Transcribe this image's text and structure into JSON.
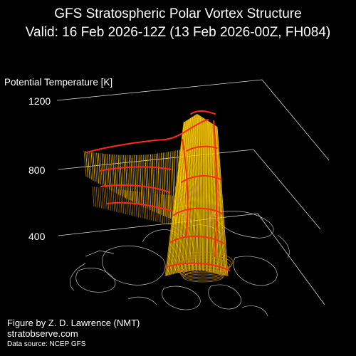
{
  "chart_data": {
    "type": "3d-surface",
    "title_line1": "GFS Stratospheric Polar Vortex Structure",
    "title_line2": "Valid: 16 Feb 2026-12Z  (13 Feb 2026-00Z, FH084)",
    "zlabel": "Potential Temperature [K]",
    "z_ticks": [
      "1200",
      "800",
      "400"
    ],
    "z_range": [
      350,
      1200
    ],
    "colors": {
      "background": "#000000",
      "contour": "#ff2a1a",
      "surface_light": "#ffd400",
      "surface_dark": "#c98a10",
      "map": "#bbbbbb",
      "grid": "#d8d8d8"
    }
  },
  "credits": {
    "line1": "Figure by Z. D. Lawrence (NMT)",
    "line2": "stratobserve.com",
    "line3": "Data source: NCEP GFS"
  }
}
